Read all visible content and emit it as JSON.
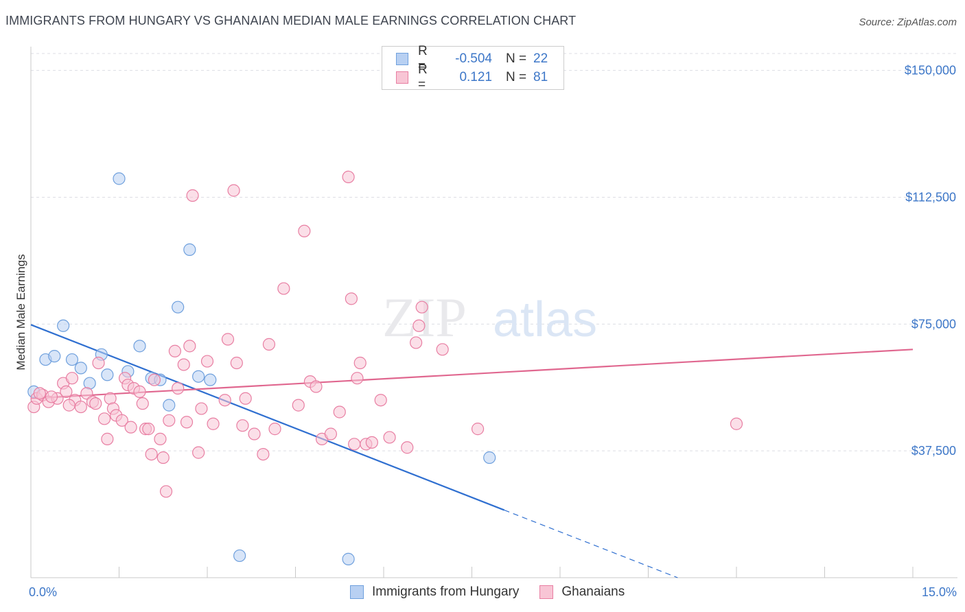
{
  "header": {
    "title": "IMMIGRANTS FROM HUNGARY VS GHANAIAN MEDIAN MALE EARNINGS CORRELATION CHART",
    "source": "Source: ZipAtlas.com"
  },
  "watermark": {
    "zip": "ZIP",
    "atlas": "atlas"
  },
  "legend": {
    "rows": [
      {
        "r_label": "R =",
        "r_value": "-0.504",
        "n_label": "N =",
        "n_value": "22",
        "color": "#a7c5ef"
      },
      {
        "r_label": "R =",
        "r_value": "0.121",
        "n_label": "N =",
        "n_value": "81",
        "color": "#f5b4c9"
      }
    ]
  },
  "bottom_legend": [
    {
      "label": "Immigrants from Hungary",
      "color": "#a7c5ef"
    },
    {
      "label": "Ghanaians",
      "color": "#f5b4c9"
    }
  ],
  "chart_data": {
    "type": "scatter",
    "xlabel": "",
    "ylabel": "Median Male Earnings",
    "xlim": [
      0,
      15
    ],
    "ylim": [
      0,
      155000
    ],
    "x_tick_labels": [
      "0.0%",
      "15.0%"
    ],
    "y_ticks": [
      37500,
      75000,
      112500,
      150000
    ],
    "y_tick_labels": [
      "$37,500",
      "$75,000",
      "$112,500",
      "$150,000"
    ],
    "grid": true,
    "series": [
      {
        "name": "Immigrants from Hungary",
        "color": "#6fa0dd",
        "fill": "#b8d0f2",
        "points": [
          [
            0.05,
            55000
          ],
          [
            0.25,
            64500
          ],
          [
            0.4,
            65500
          ],
          [
            0.55,
            74500
          ],
          [
            0.7,
            64500
          ],
          [
            0.85,
            62000
          ],
          [
            1.0,
            57500
          ],
          [
            1.2,
            66000
          ],
          [
            1.3,
            60000
          ],
          [
            1.5,
            118000
          ],
          [
            1.65,
            61000
          ],
          [
            1.85,
            68500
          ],
          [
            2.05,
            59000
          ],
          [
            2.2,
            58500
          ],
          [
            2.35,
            51000
          ],
          [
            2.5,
            80000
          ],
          [
            2.7,
            97000
          ],
          [
            2.85,
            59500
          ],
          [
            3.05,
            58500
          ],
          [
            3.55,
            6500
          ],
          [
            5.4,
            5500
          ],
          [
            7.8,
            35500
          ]
        ],
        "trend": {
          "x0": 0.0,
          "y0": 74800,
          "x1": 8.05,
          "y1": 20000,
          "dash_to_x": 11.0,
          "dash_to_y": 0
        }
      },
      {
        "name": "Ghanaians",
        "color": "#e87ea2",
        "fill": "#f8c5d5",
        "points": [
          [
            0.05,
            50500
          ],
          [
            0.1,
            53000
          ],
          [
            0.2,
            54000
          ],
          [
            0.3,
            52000
          ],
          [
            0.45,
            53000
          ],
          [
            0.55,
            57500
          ],
          [
            0.6,
            55000
          ],
          [
            0.7,
            59000
          ],
          [
            0.75,
            52500
          ],
          [
            0.85,
            50500
          ],
          [
            0.95,
            54500
          ],
          [
            1.05,
            52000
          ],
          [
            1.1,
            51500
          ],
          [
            1.15,
            63500
          ],
          [
            1.25,
            47000
          ],
          [
            1.3,
            41000
          ],
          [
            1.35,
            53000
          ],
          [
            1.4,
            50000
          ],
          [
            1.45,
            48000
          ],
          [
            1.55,
            46500
          ],
          [
            1.6,
            59000
          ],
          [
            1.65,
            57000
          ],
          [
            1.7,
            44500
          ],
          [
            1.75,
            56000
          ],
          [
            1.85,
            55000
          ],
          [
            1.9,
            51500
          ],
          [
            1.95,
            44000
          ],
          [
            2.0,
            44000
          ],
          [
            2.05,
            36500
          ],
          [
            2.1,
            58500
          ],
          [
            2.2,
            41000
          ],
          [
            2.25,
            35500
          ],
          [
            2.3,
            25500
          ],
          [
            2.35,
            46500
          ],
          [
            2.45,
            67000
          ],
          [
            2.5,
            56000
          ],
          [
            2.6,
            63000
          ],
          [
            2.65,
            46000
          ],
          [
            2.7,
            68500
          ],
          [
            2.75,
            113000
          ],
          [
            2.85,
            37000
          ],
          [
            2.9,
            50000
          ],
          [
            3.0,
            64000
          ],
          [
            3.1,
            45500
          ],
          [
            3.3,
            52500
          ],
          [
            3.35,
            70500
          ],
          [
            3.45,
            114500
          ],
          [
            3.5,
            63500
          ],
          [
            3.6,
            45000
          ],
          [
            3.65,
            53000
          ],
          [
            3.8,
            42500
          ],
          [
            3.95,
            36500
          ],
          [
            4.05,
            69000
          ],
          [
            4.15,
            44000
          ],
          [
            4.3,
            85500
          ],
          [
            4.55,
            51000
          ],
          [
            4.65,
            102500
          ],
          [
            4.75,
            58000
          ],
          [
            4.85,
            56500
          ],
          [
            4.95,
            41000
          ],
          [
            5.1,
            42500
          ],
          [
            5.25,
            49000
          ],
          [
            5.4,
            118500
          ],
          [
            5.45,
            82500
          ],
          [
            5.5,
            39500
          ],
          [
            5.55,
            59000
          ],
          [
            5.6,
            63500
          ],
          [
            5.7,
            39500
          ],
          [
            5.8,
            40000
          ],
          [
            5.95,
            52500
          ],
          [
            6.1,
            41500
          ],
          [
            6.4,
            38500
          ],
          [
            6.55,
            69500
          ],
          [
            6.6,
            74500
          ],
          [
            6.65,
            80000
          ],
          [
            7.0,
            67500
          ],
          [
            7.6,
            44000
          ],
          [
            12.0,
            45500
          ],
          [
            0.15,
            54500
          ],
          [
            0.35,
            53500
          ],
          [
            0.65,
            51000
          ]
        ],
        "trend": {
          "x0": 0.0,
          "y0": 53000,
          "x1": 15.0,
          "y1": 67500
        }
      }
    ]
  }
}
